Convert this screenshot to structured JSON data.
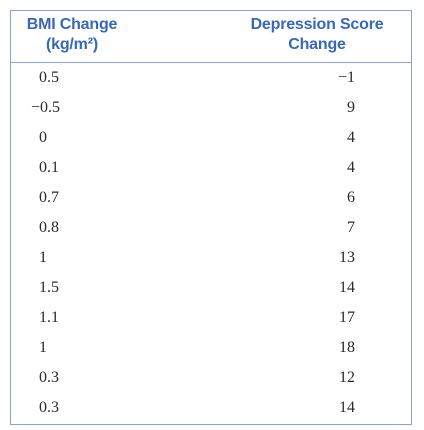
{
  "table": {
    "headers": [
      [
        "BMI Change",
        "(kg/m²)"
      ],
      [
        "Depression Score",
        "Change"
      ]
    ],
    "rows": [
      [
        "0.5",
        "−1"
      ],
      [
        "−0.5",
        "9"
      ],
      [
        "0",
        "4"
      ],
      [
        "0.1",
        "4"
      ],
      [
        "0.7",
        "6"
      ],
      [
        "0.8",
        "7"
      ],
      [
        "1",
        "13"
      ],
      [
        "1.5",
        "14"
      ],
      [
        "1.1",
        "17"
      ],
      [
        "1",
        "18"
      ],
      [
        "0.3",
        "12"
      ],
      [
        "0.3",
        "14"
      ]
    ],
    "colors": {
      "border": "#8aa3c8",
      "header_text": "#3a68b4",
      "body_text": "#2a2a2a"
    }
  }
}
